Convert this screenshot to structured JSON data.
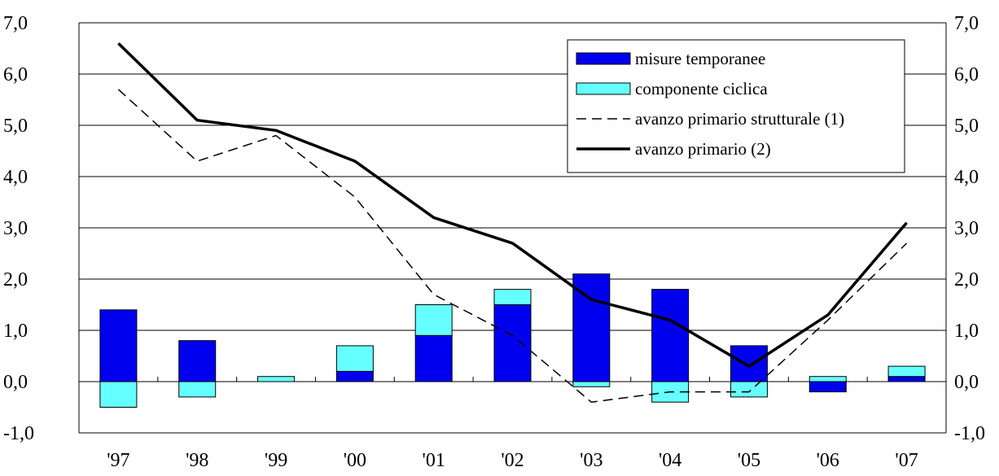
{
  "chart_data": {
    "type": "bar",
    "categories": [
      "'97",
      "'98",
      "'99",
      "'00",
      "'01",
      "'02",
      "'03",
      "'04",
      "'05",
      "'06",
      "'07"
    ],
    "ylim": [
      -1.0,
      7.0
    ],
    "yticks": [
      "7,0",
      "6,0",
      "5,0",
      "4,0",
      "3,0",
      "2,0",
      "1,0",
      "0,0",
      "-1,0"
    ],
    "ytick_values": [
      7,
      6,
      5,
      4,
      3,
      2,
      1,
      0,
      -1
    ],
    "grid": true,
    "legend_position": "top-right",
    "stacked": true,
    "series": [
      {
        "name": "misure temporanee",
        "kind": "bar",
        "color": "#0000ee",
        "values": [
          1.4,
          0.8,
          0.0,
          0.2,
          0.9,
          1.5,
          2.1,
          1.8,
          0.7,
          -0.2,
          0.1
        ]
      },
      {
        "name": "componente ciclica",
        "kind": "bar",
        "color": "#66ffff",
        "values": [
          -0.5,
          -0.3,
          0.1,
          0.5,
          0.6,
          0.3,
          -0.1,
          -0.4,
          -0.3,
          0.1,
          0.2
        ]
      },
      {
        "name": "avanzo primario strutturale (1)",
        "kind": "line",
        "style": "dashed",
        "color": "#000000",
        "values": [
          5.7,
          4.3,
          4.8,
          3.6,
          1.7,
          0.9,
          -0.4,
          -0.2,
          -0.2,
          1.2,
          2.7
        ]
      },
      {
        "name": "avanzo primario (2)",
        "kind": "line",
        "style": "solid",
        "color": "#000000",
        "values": [
          6.6,
          5.1,
          4.9,
          4.3,
          3.2,
          2.7,
          1.6,
          1.2,
          0.3,
          1.3,
          3.1
        ]
      }
    ]
  }
}
